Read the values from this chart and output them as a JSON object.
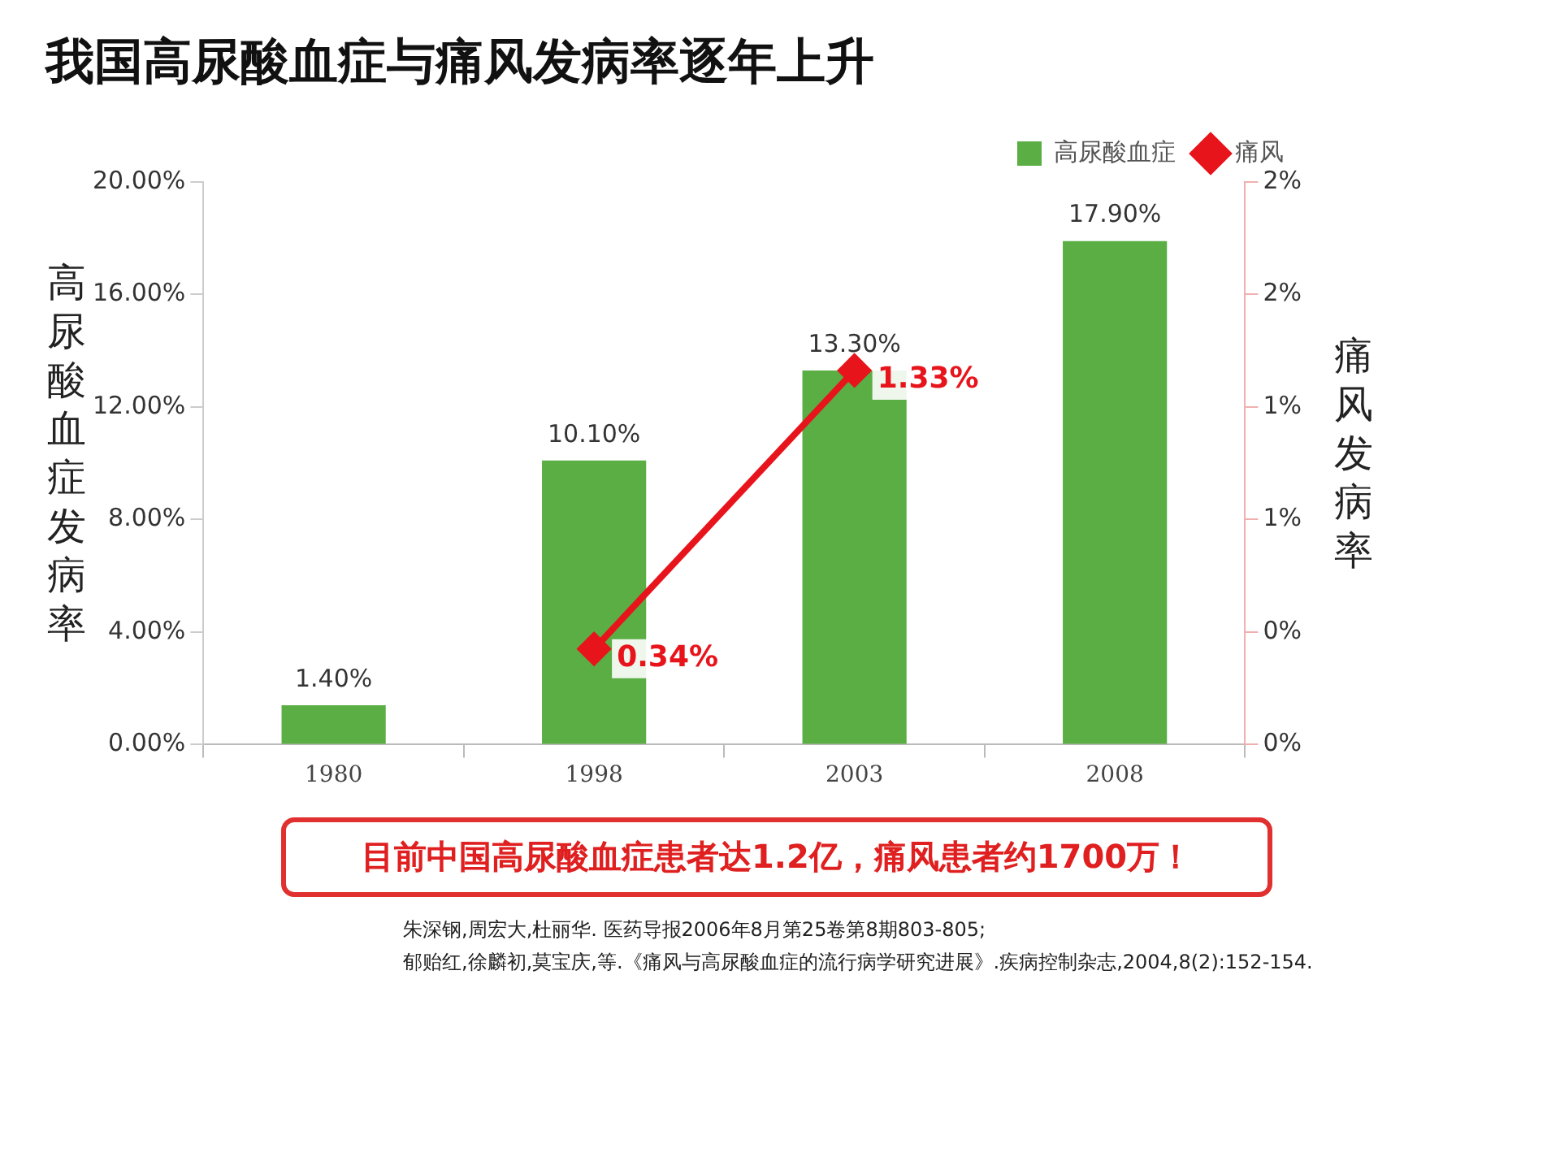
{
  "chart_data": {
    "type": "bar",
    "title": "我国高尿酸血症与痛风发病率逐年上升",
    "ylabel": "高尿酸血症发病率",
    "y2label": "痛风发病率",
    "categories": [
      "1980",
      "1998",
      "2003",
      "2008"
    ],
    "series": [
      {
        "name": "高尿酸血症",
        "color": "#5aae44",
        "values": [
          1.4,
          10.1,
          13.3,
          17.9
        ],
        "value_labels": [
          "1.40%",
          "10.10%",
          "13.30%",
          "17.90%"
        ]
      },
      {
        "name": "痛风",
        "type": "line",
        "axis": "y2",
        "color": "#e8141c",
        "marker": "diamond",
        "values": [
          null,
          0.34,
          1.33,
          null
        ],
        "value_labels": [
          null,
          "0.34%",
          "1.33%",
          null
        ]
      }
    ],
    "ylim": [
      0,
      20
    ],
    "yticks": [
      {
        "value": 0,
        "label": "0.00%"
      },
      {
        "value": 4,
        "label": "4.00%"
      },
      {
        "value": 8,
        "label": "8.00%"
      },
      {
        "value": 12,
        "label": "12.00%"
      },
      {
        "value": 16,
        "label": "16.00%"
      },
      {
        "value": 20,
        "label": "20.00%"
      }
    ],
    "y2lim": [
      0,
      2
    ],
    "y2ticks": [
      {
        "value": 0,
        "label": "0%"
      },
      {
        "value": 0.4,
        "label": "0%"
      },
      {
        "value": 0.8,
        "label": "1%"
      },
      {
        "value": 1.2,
        "label": "1%"
      },
      {
        "value": 1.6,
        "label": "2%"
      },
      {
        "value": 2,
        "label": "2%"
      }
    ],
    "grid": false,
    "legend": "top right",
    "annotations": [
      "目前中国高尿酸血症患者达1.2亿，痛风患者约1700万！",
      "朱深钢,周宏大,杜丽华. 医药导报2006年8月第25卷第8期803-805;",
      "郁贻红,徐麟初,莫宝庆,等.《痛风与高尿酸血症的流行病学研究进展》.疾病控制杂志,2004,8(2):152-154."
    ]
  }
}
